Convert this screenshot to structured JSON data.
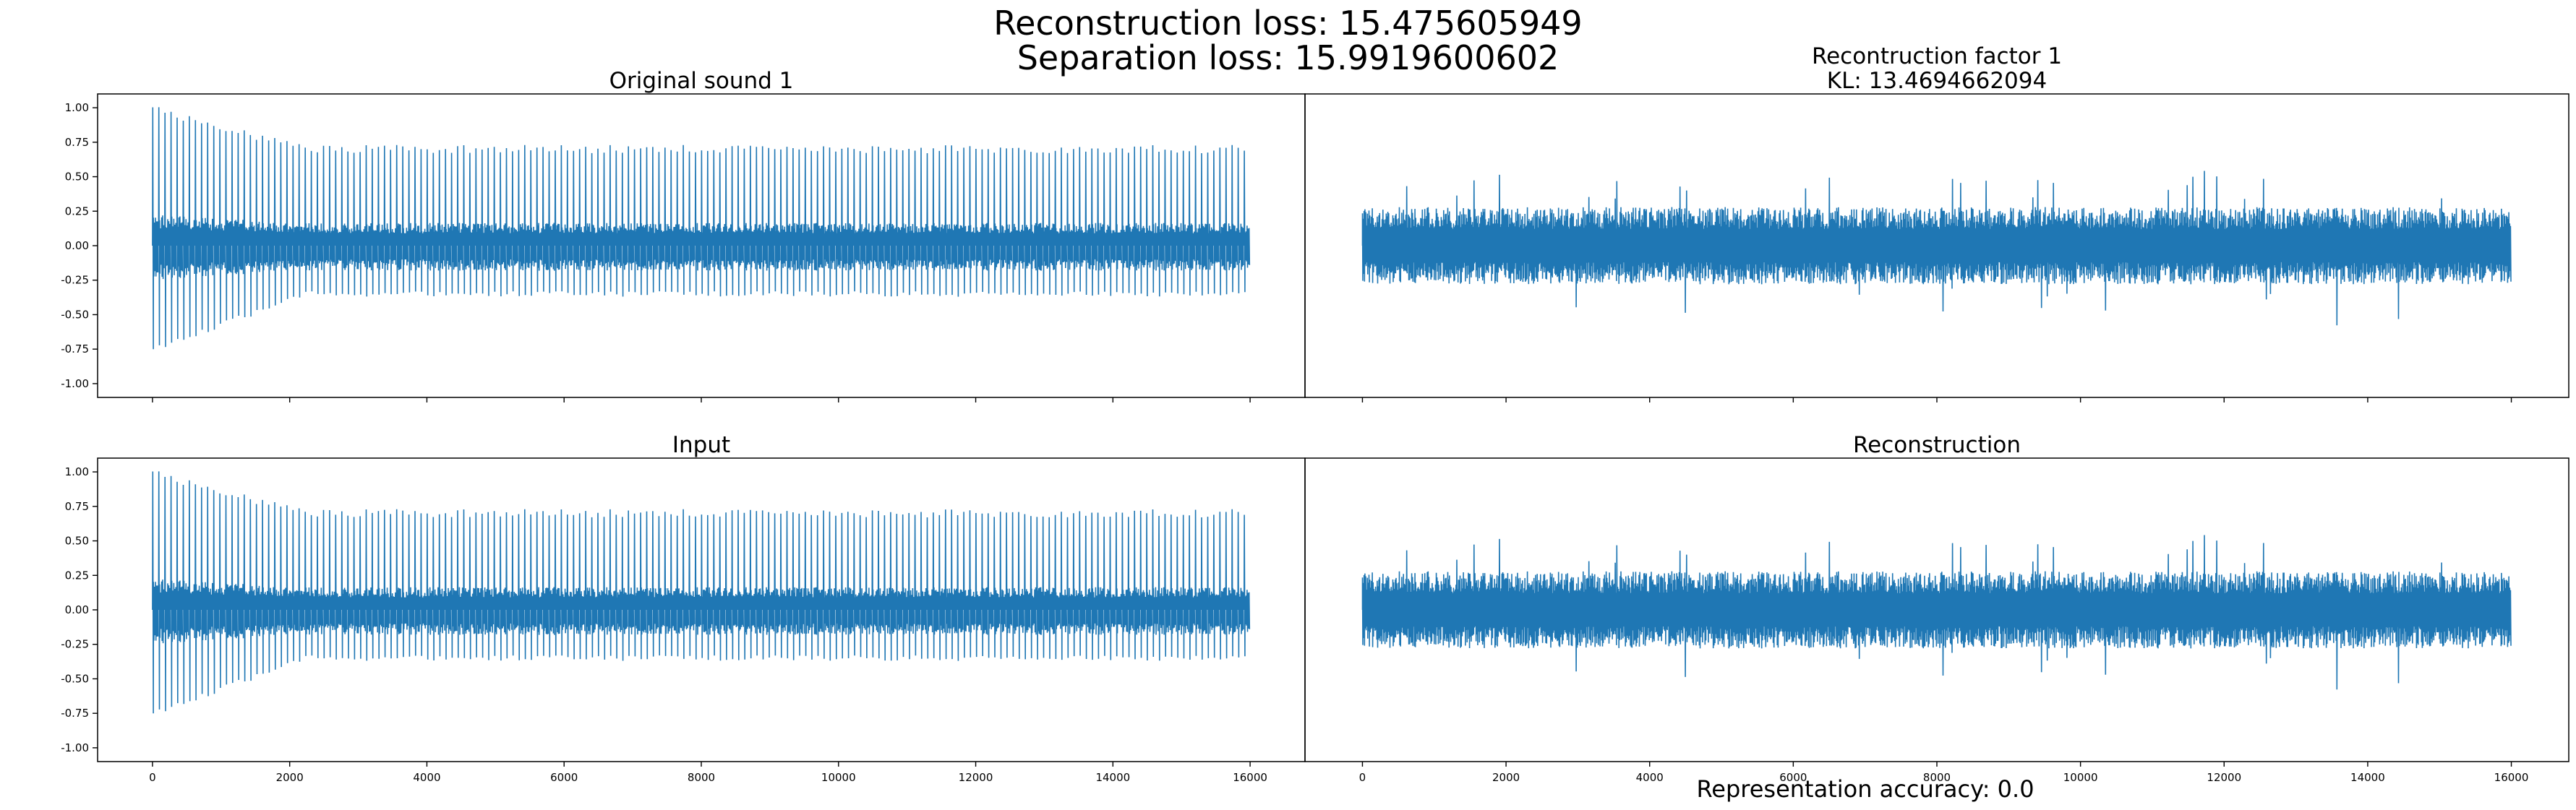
{
  "suptitle": {
    "line1": "Reconstruction loss: 15.475605949",
    "line2": "Separation loss: 15.9919600602"
  },
  "footer": "Representation accuracy: 0.0",
  "colors": {
    "signal": "#1f77b4",
    "axes": "#000000"
  },
  "chart_data": [
    {
      "type": "line",
      "title": "Original sound 1",
      "xlim": [
        -800,
        16800
      ],
      "ylim": [
        -1.1,
        1.1
      ],
      "yticks": [
        "1.00",
        "0.75",
        "0.50",
        "0.25",
        "0.00",
        "-0.25",
        "-0.50",
        "-0.75",
        "-1.00"
      ],
      "ytick_values": [
        1.0,
        0.75,
        0.5,
        0.25,
        0.0,
        -0.25,
        -0.5,
        -0.75,
        -1.0
      ],
      "xtick_values": [
        0,
        2000,
        4000,
        6000,
        8000,
        10000,
        12000,
        14000,
        16000
      ],
      "xticklabels_shown": false,
      "series": [
        {
          "x_range": [
            0,
            16000
          ],
          "envelope_max": 0.99,
          "envelope_min": -0.75,
          "body_band": [
            -0.15,
            0.15
          ],
          "signal": "periodic spikes"
        }
      ]
    },
    {
      "type": "line",
      "title": "Recontruction factor 1\nKL: 13.4694662094",
      "xlim": [
        -800,
        16800
      ],
      "ylim": [
        -1.1,
        1.1
      ],
      "xtick_values": [
        0,
        2000,
        4000,
        6000,
        8000,
        10000,
        12000,
        14000,
        16000
      ],
      "xticklabels_shown": false,
      "series": [
        {
          "x_range": [
            0,
            16000
          ],
          "envelope_max": 0.55,
          "envelope_min": -0.6,
          "body_band": [
            -0.2,
            0.2
          ],
          "signal": "noise"
        }
      ]
    },
    {
      "type": "line",
      "title": "Input",
      "xlim": [
        -800,
        16800
      ],
      "ylim": [
        -1.1,
        1.1
      ],
      "yticks": [
        "1.00",
        "0.75",
        "0.50",
        "0.25",
        "0.00",
        "-0.25",
        "-0.50",
        "-0.75",
        "-1.00"
      ],
      "ytick_values": [
        1.0,
        0.75,
        0.5,
        0.25,
        0.0,
        -0.25,
        -0.5,
        -0.75,
        -1.0
      ],
      "xticks": [
        "0",
        "2000",
        "4000",
        "6000",
        "8000",
        "10000",
        "12000",
        "14000",
        "16000"
      ],
      "xtick_values": [
        0,
        2000,
        4000,
        6000,
        8000,
        10000,
        12000,
        14000,
        16000
      ],
      "series": [
        {
          "x_range": [
            0,
            16000
          ],
          "envelope_max": 0.97,
          "envelope_min": -0.72,
          "body_band": [
            -0.15,
            0.15
          ],
          "signal": "periodic spikes"
        }
      ]
    },
    {
      "type": "line",
      "title": "Reconstruction",
      "xlim": [
        -800,
        16800
      ],
      "ylim": [
        -1.1,
        1.1
      ],
      "xticks": [
        "0",
        "2000",
        "4000",
        "6000",
        "8000",
        "10000",
        "12000",
        "14000",
        "16000"
      ],
      "xtick_values": [
        0,
        2000,
        4000,
        6000,
        8000,
        10000,
        12000,
        14000,
        16000
      ],
      "series": [
        {
          "x_range": [
            0,
            16000
          ],
          "envelope_max": 0.55,
          "envelope_min": -0.6,
          "body_band": [
            -0.2,
            0.2
          ],
          "signal": "noise"
        }
      ]
    }
  ]
}
